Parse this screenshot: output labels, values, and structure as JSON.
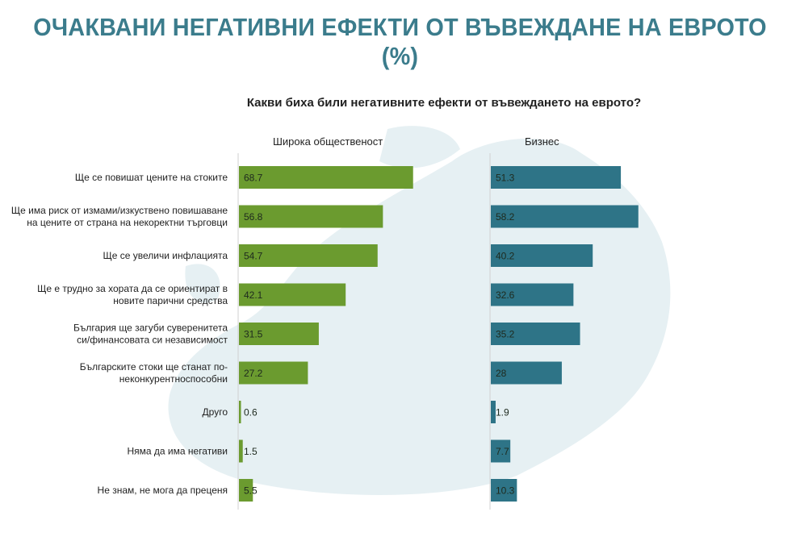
{
  "chart_data": {
    "type": "bar",
    "orientation": "horizontal",
    "title": "ОЧАКВАНИ НЕГАТИВНИ ЕФЕКТИ ОТ ВЪВЕЖДАНЕ НА ЕВРОТО (%)",
    "subtitle": "Какви биха били негативните ефекти от въвеждането на еврото?",
    "categories": [
      [
        "Ще се повишат цените на стоките"
      ],
      [
        "Ще има риск от измами/изкуствено повишаване",
        "на цените от страна на некоректни търговци"
      ],
      [
        "Ще се увеличи инфлацията"
      ],
      [
        "Ще е трудно за хората да се ориентират в",
        "новите парични средства"
      ],
      [
        "България ще загуби суверенитета",
        "си/финансовата си независимост"
      ],
      [
        "Българските стоки ще станат по-",
        "неконкурентноспособни"
      ],
      [
        "Друго"
      ],
      [
        "Няма да има негативи"
      ],
      [
        "Не знам, не мога да преценя"
      ]
    ],
    "series": [
      {
        "name": "Широка общественост",
        "color": "#6b9b2f",
        "values": [
          68.7,
          56.8,
          54.7,
          42.1,
          31.5,
          27.2,
          0.6,
          1.5,
          5.5
        ]
      },
      {
        "name": "Бизнес",
        "color": "#2e7487",
        "values": [
          51.3,
          58.2,
          40.2,
          32.6,
          35.2,
          28,
          1.9,
          7.7,
          10.3
        ]
      }
    ],
    "xlim": [
      0,
      100
    ],
    "grid": false,
    "background": "Europe map, light blue"
  }
}
